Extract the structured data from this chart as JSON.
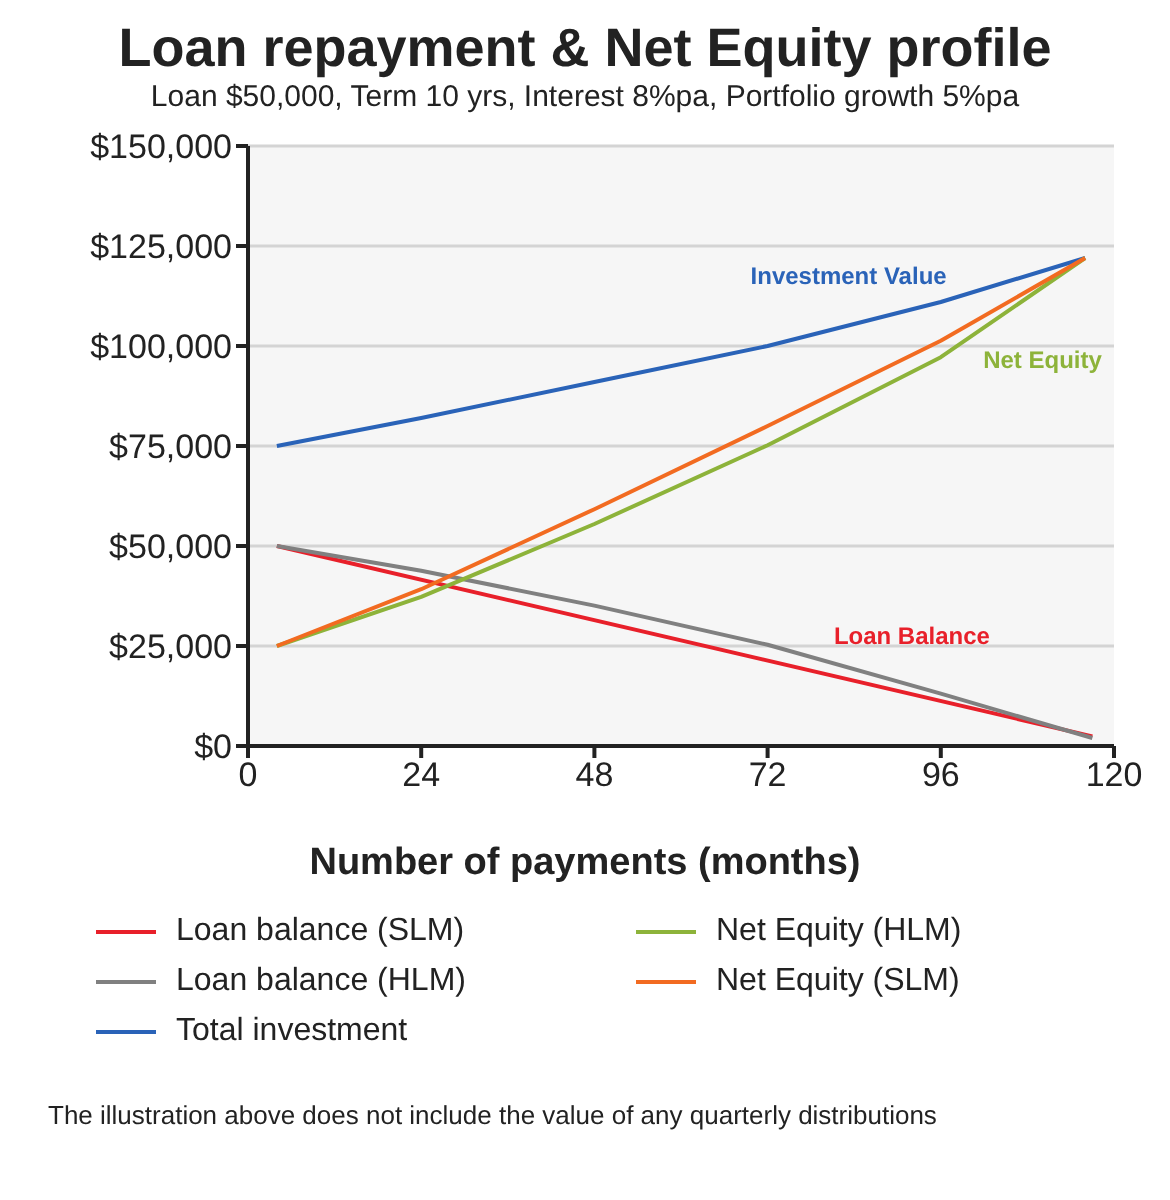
{
  "chart_data": {
    "type": "line",
    "title": "Loan repayment & Net Equity profile",
    "subtitle": "Loan $50,000, Term 10 yrs, Interest 8%pa, Portfolio growth 5%pa",
    "xlabel": "Number of payments (months)",
    "xlim": [
      0,
      120
    ],
    "xticks": [
      0,
      24,
      48,
      72,
      96,
      120
    ],
    "ylim": [
      0,
      150000
    ],
    "yticks": [
      {
        "value": 0,
        "label": "$0"
      },
      {
        "value": 25000,
        "label": "$25,000"
      },
      {
        "value": 50000,
        "label": "$50,000"
      },
      {
        "value": 75000,
        "label": "$75,000"
      },
      {
        "value": 100000,
        "label": "$100,000"
      },
      {
        "value": 125000,
        "label": "$125,000"
      },
      {
        "value": 150000,
        "label": "$150,000"
      }
    ],
    "grid": "y",
    "legend": "bottom",
    "marker": "none",
    "line_style": "solid",
    "series": [
      {
        "name": "Loan balance (SLM)",
        "color": "#e8202a",
        "x": [
          4,
          117
        ],
        "values": [
          50000,
          2400
        ]
      },
      {
        "name": "Loan balance (HLM)",
        "color": "#808080",
        "x": [
          4,
          24,
          48,
          72,
          96,
          117
        ],
        "values": [
          50000,
          43800,
          35100,
          25300,
          13100,
          2000
        ]
      },
      {
        "name": "Total investment",
        "color": "#2a63b8",
        "x": [
          4,
          24,
          48,
          72,
          96,
          116
        ],
        "values": [
          75000,
          82000,
          91000,
          100000,
          111000,
          122000
        ]
      },
      {
        "name": "Net Equity (HLM)",
        "color": "#8db33a",
        "x": [
          4,
          24,
          48,
          72,
          96,
          116
        ],
        "values": [
          25000,
          37300,
          55500,
          75200,
          97200,
          122000
        ]
      },
      {
        "name": "Net Equity (SLM)",
        "color": "#f26b21",
        "x": [
          4,
          24,
          48,
          72,
          96,
          116
        ],
        "values": [
          25000,
          39200,
          59200,
          80000,
          101300,
          122000
        ]
      }
    ],
    "annotations": [
      {
        "text": "Investment Value",
        "x": 86,
        "y": 106000
      },
      {
        "text": "Net Equity",
        "x": 104,
        "y": 107000
      },
      {
        "text": "Loan Balance",
        "x": 92,
        "y": 13000
      },
      "The illustration above does not include the value of any quarterly distributions"
    ]
  }
}
